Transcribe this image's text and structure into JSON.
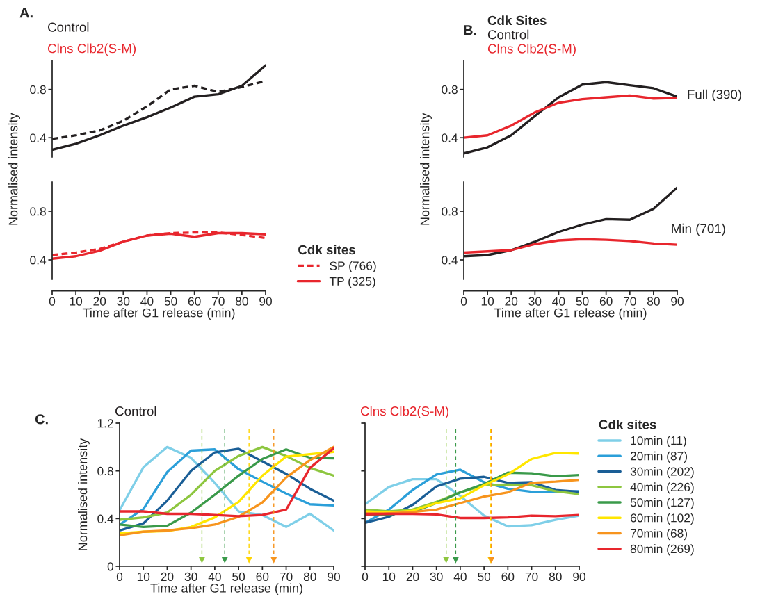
{
  "chart_data": [
    {
      "type": "line",
      "title": "A.",
      "annotations": [
        "Control",
        "Clns Clb2(S-M)"
      ],
      "x": [
        0,
        10,
        20,
        30,
        40,
        50,
        60,
        70,
        80,
        90
      ],
      "xlim": [
        0,
        90
      ],
      "ylim": [
        0.24,
        1.04
      ],
      "yticks": [
        0.4,
        0.8
      ],
      "tick_labels": "y",
      "series": [
        {
          "color": "#231f20",
          "line_style": "dashed",
          "values": [
            0.39,
            0.42,
            0.46,
            0.54,
            0.66,
            0.8,
            0.83,
            0.78,
            0.82,
            0.87
          ]
        },
        {
          "color": "#231f20",
          "line_style": "solid",
          "values": [
            0.3,
            0.35,
            0.42,
            0.5,
            0.57,
            0.65,
            0.74,
            0.76,
            0.83,
            1.0
          ]
        }
      ]
    },
    {
      "type": "line",
      "xlabel": "Time after G1 release (min)",
      "ylabel": "Normalised intensity",
      "x": [
        0,
        10,
        20,
        30,
        40,
        50,
        60,
        70,
        80,
        90
      ],
      "xlim": [
        0,
        90
      ],
      "xticks": [
        0,
        10,
        20,
        30,
        40,
        50,
        60,
        70,
        80,
        90
      ],
      "ylim": [
        0.24,
        1.04
      ],
      "yticks": [
        0.4,
        0.8
      ],
      "legend": "bottom right",
      "legend_title": "Cdk sites",
      "series": [
        {
          "name": "SP (766)",
          "color": "#e8262d",
          "line_style": "dashed",
          "values": [
            0.44,
            0.46,
            0.49,
            0.55,
            0.6,
            0.62,
            0.625,
            0.625,
            0.605,
            0.58
          ]
        },
        {
          "name": "TP (325)",
          "color": "#e8262d",
          "line_style": "solid",
          "values": [
            0.41,
            0.43,
            0.475,
            0.55,
            0.6,
            0.615,
            0.59,
            0.62,
            0.62,
            0.61
          ]
        }
      ]
    },
    {
      "type": "line",
      "title": "B.",
      "x": [
        0,
        10,
        20,
        30,
        40,
        50,
        60,
        70,
        80,
        90
      ],
      "xlim": [
        0,
        90
      ],
      "ylim": [
        0.24,
        1.04
      ],
      "yticks": [
        0.4,
        0.8
      ],
      "tick_labels": "y",
      "legend": "top left",
      "legend_title": "Cdk Sites",
      "annotations": [
        {
          "text": "Full (390)",
          "x": 90,
          "y": 0.75
        }
      ],
      "series": [
        {
          "name": "Control",
          "color": "#231f20",
          "line_style": "solid",
          "values": [
            0.27,
            0.32,
            0.42,
            0.58,
            0.735,
            0.84,
            0.86,
            0.835,
            0.81,
            0.74
          ]
        },
        {
          "name": "Clns Clb2(S-M)",
          "color": "#e8262d",
          "line_style": "solid",
          "values": [
            0.4,
            0.42,
            0.5,
            0.61,
            0.69,
            0.72,
            0.735,
            0.75,
            0.725,
            0.73
          ]
        }
      ]
    },
    {
      "type": "line",
      "xlabel": "Time after G1 release (min)",
      "ylabel": "Normalised intensity",
      "x": [
        0,
        10,
        20,
        30,
        40,
        50,
        60,
        70,
        80,
        90
      ],
      "xlim": [
        0,
        90
      ],
      "xticks": [
        0,
        10,
        20,
        30,
        40,
        50,
        60,
        70,
        80,
        90
      ],
      "ylim": [
        0.24,
        1.04
      ],
      "yticks": [
        0.4,
        0.8
      ],
      "annotations": [
        "Min (701)"
      ],
      "series": [
        {
          "color": "#231f20",
          "line_style": "solid",
          "values": [
            0.43,
            0.44,
            0.48,
            0.55,
            0.63,
            0.69,
            0.735,
            0.73,
            0.82,
            0.995
          ]
        },
        {
          "color": "#e8262d",
          "line_style": "solid",
          "values": [
            0.46,
            0.47,
            0.48,
            0.53,
            0.56,
            0.57,
            0.565,
            0.555,
            0.535,
            0.525
          ]
        }
      ]
    },
    {
      "type": "line",
      "title": "C.",
      "annotations": [
        "Control"
      ],
      "xlabel": "Time after G1 release (min)",
      "ylabel": "Normalised intensity",
      "x": [
        0,
        10,
        20,
        30,
        40,
        50,
        60,
        70,
        80,
        90
      ],
      "xlim": [
        0,
        90
      ],
      "xticks": [
        0,
        10,
        20,
        30,
        40,
        50,
        60,
        70,
        80,
        90
      ],
      "ylim": [
        0,
        1.2
      ],
      "yticks": [
        0,
        0.4,
        0.8,
        1.2
      ],
      "ref_lines": [
        {
          "axis": "x",
          "value": 34.6,
          "color": "#8dc63f",
          "line_style": "dashed"
        },
        {
          "axis": "x",
          "value": 44.2,
          "color": "#3a9a4a",
          "line_style": "dashed"
        },
        {
          "axis": "x",
          "value": 54.4,
          "color": "#ffd400",
          "line_style": "dashed"
        },
        {
          "axis": "x",
          "value": 64.8,
          "color": "#f7941d",
          "line_style": "dashed"
        }
      ],
      "series": [
        {
          "color": "#7fcfe8",
          "values": [
            0.47,
            0.83,
            1.0,
            0.91,
            0.7,
            0.46,
            0.43,
            0.33,
            0.44,
            0.3
          ]
        },
        {
          "color": "#2b9fd9",
          "values": [
            0.35,
            0.48,
            0.79,
            0.97,
            0.98,
            0.815,
            0.71,
            0.61,
            0.52,
            0.51
          ]
        },
        {
          "color": "#1a5e96",
          "values": [
            0.3,
            0.36,
            0.55,
            0.8,
            0.955,
            0.985,
            0.88,
            0.775,
            0.65,
            0.55
          ]
        },
        {
          "color": "#8dc63f",
          "values": [
            0.39,
            0.41,
            0.45,
            0.6,
            0.8,
            0.925,
            1.0,
            0.925,
            0.825,
            0.76
          ]
        },
        {
          "color": "#3a9a4a",
          "values": [
            0.35,
            0.33,
            0.34,
            0.45,
            0.6,
            0.76,
            0.9,
            0.98,
            0.91,
            0.905
          ]
        },
        {
          "color": "#ffe600",
          "values": [
            0.275,
            0.29,
            0.295,
            0.33,
            0.41,
            0.54,
            0.76,
            0.92,
            0.94,
            0.96
          ]
        },
        {
          "color": "#f7941d",
          "values": [
            0.26,
            0.29,
            0.3,
            0.32,
            0.35,
            0.415,
            0.535,
            0.745,
            0.89,
            1.0
          ]
        },
        {
          "color": "#e8262d",
          "values": [
            0.46,
            0.46,
            0.44,
            0.44,
            0.43,
            0.42,
            0.43,
            0.475,
            0.825,
            0.99
          ]
        }
      ]
    },
    {
      "type": "line",
      "annotations": [
        "Clns Clb2(S-M)"
      ],
      "x": [
        0,
        10,
        20,
        30,
        40,
        50,
        60,
        70,
        80,
        90
      ],
      "xlim": [
        0,
        90
      ],
      "xticks": [
        0,
        10,
        20,
        30,
        40,
        50,
        60,
        70,
        80,
        90
      ],
      "ylim": [
        0,
        1.2
      ],
      "yticks": [
        0,
        0.4,
        0.8,
        1.2
      ],
      "tick_labels": "x",
      "legend": "right",
      "legend_title": "Cdk sites",
      "ref_lines": [
        {
          "axis": "x",
          "value": 34.1,
          "color": "#8dc63f",
          "line_style": "dashed"
        },
        {
          "axis": "x",
          "value": 38.1,
          "color": "#3a9a4a",
          "line_style": "dashed"
        },
        {
          "axis": "x",
          "value": 52.8,
          "color": "#ffd400",
          "line_style": "dashed"
        },
        {
          "axis": "x",
          "value": 53.1,
          "color": "#f7941d",
          "line_style": "dashed"
        }
      ],
      "series": [
        {
          "name": "10min (11)",
          "color": "#7fcfe8",
          "values": [
            0.52,
            0.665,
            0.73,
            0.73,
            0.59,
            0.425,
            0.335,
            0.345,
            0.39,
            0.425
          ]
        },
        {
          "name": "20min (87)",
          "color": "#2b9fd9",
          "values": [
            0.365,
            0.475,
            0.64,
            0.77,
            0.81,
            0.705,
            0.65,
            0.625,
            0.625,
            0.63
          ]
        },
        {
          "name": "30min (202)",
          "color": "#1a5e96",
          "values": [
            0.365,
            0.415,
            0.515,
            0.67,
            0.735,
            0.75,
            0.7,
            0.705,
            0.64,
            0.625
          ]
        },
        {
          "name": "40min (226)",
          "color": "#8dc63f",
          "values": [
            0.475,
            0.46,
            0.475,
            0.54,
            0.62,
            0.68,
            0.685,
            0.68,
            0.63,
            0.605
          ]
        },
        {
          "name": "50min (127)",
          "color": "#3a9a4a",
          "values": [
            0.435,
            0.435,
            0.455,
            0.53,
            0.62,
            0.69,
            0.785,
            0.78,
            0.755,
            0.765
          ]
        },
        {
          "name": "60min (102)",
          "color": "#ffe600",
          "values": [
            0.46,
            0.45,
            0.465,
            0.53,
            0.57,
            0.68,
            0.77,
            0.9,
            0.95,
            0.945
          ]
        },
        {
          "name": "70min (68)",
          "color": "#f7941d",
          "values": [
            0.445,
            0.445,
            0.455,
            0.475,
            0.53,
            0.585,
            0.62,
            0.7,
            0.71,
            0.725
          ]
        },
        {
          "name": "80min (269)",
          "color": "#e8262d",
          "values": [
            0.435,
            0.44,
            0.44,
            0.435,
            0.405,
            0.405,
            0.41,
            0.425,
            0.42,
            0.43
          ]
        }
      ]
    }
  ]
}
